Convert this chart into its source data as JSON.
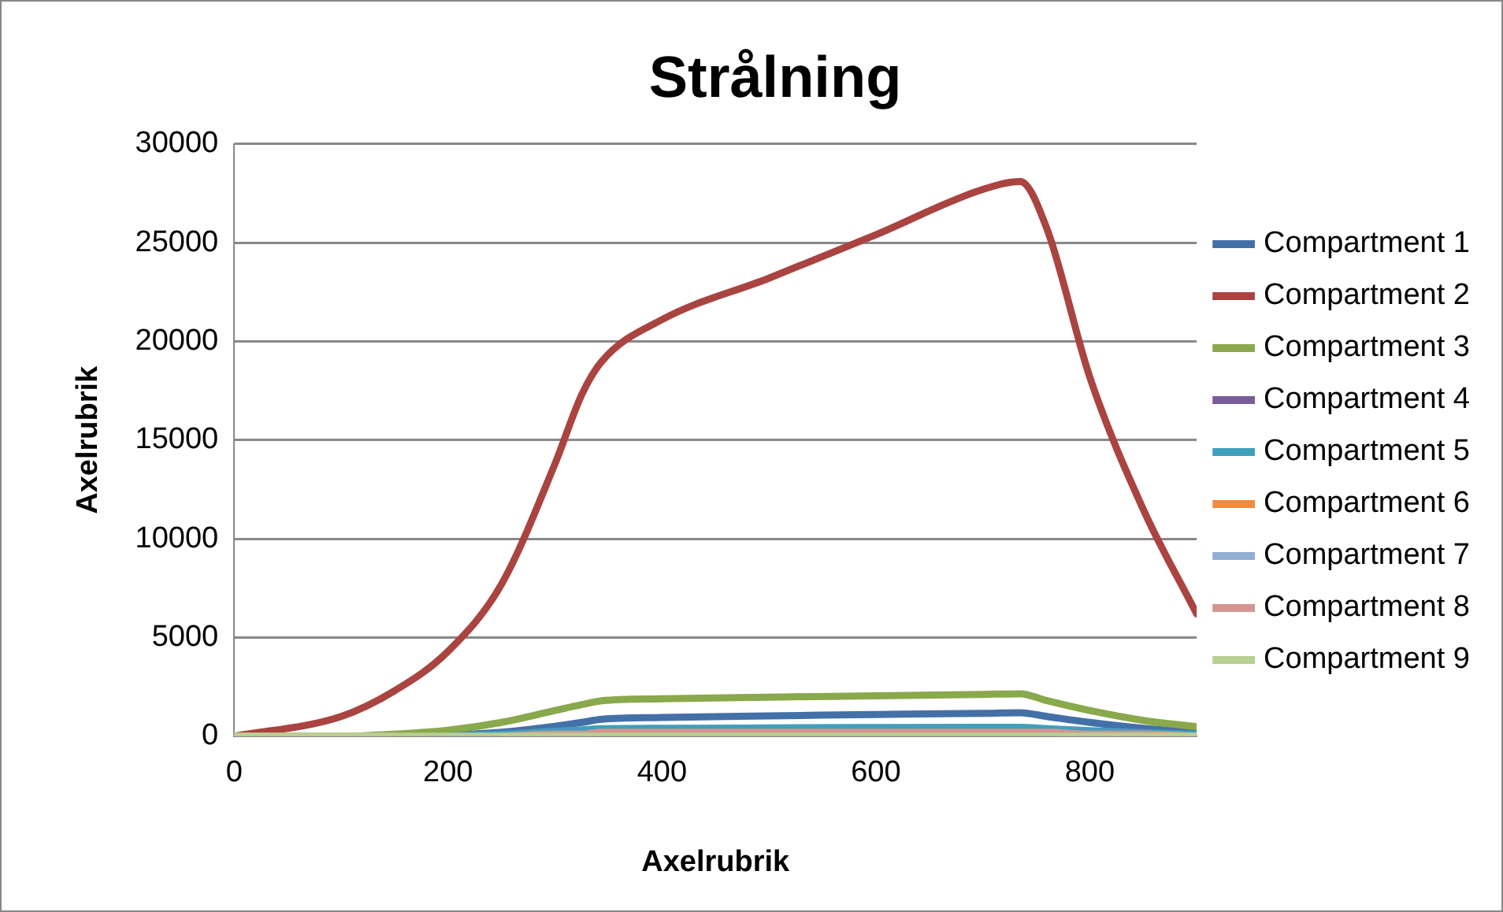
{
  "chart_data": {
    "type": "line",
    "title": "Strålning",
    "xlabel": "Axelrubrik",
    "ylabel": "Axelrubrik",
    "x": [
      0,
      100,
      150,
      200,
      250,
      300,
      325,
      344,
      400,
      500,
      600,
      700,
      735,
      760,
      800,
      850,
      900
    ],
    "xlim": [
      0,
      900
    ],
    "xticks": [
      0,
      200,
      400,
      600,
      800
    ],
    "ylim": [
      0,
      30000
    ],
    "yticks": [
      0,
      5000,
      10000,
      15000,
      20000,
      25000,
      30000
    ],
    "grid": "y",
    "legend": "right",
    "marker": "none",
    "line_style": "solid",
    "series": [
      {
        "name": "Compartment 1",
        "color": "#4470a8",
        "values": [
          null,
          null,
          0,
          50,
          200,
          500,
          700,
          860,
          950,
          1030,
          1100,
          1160,
          1190,
          1000,
          700,
          400,
          200
        ]
      },
      {
        "name": "Compartment 2",
        "color": "#aa4440",
        "values": [
          0,
          1000,
          2300,
          4300,
          7700,
          13800,
          17300,
          19000,
          21100,
          23200,
          25400,
          27700,
          28100,
          25700,
          18200,
          11500,
          6200
        ]
      },
      {
        "name": "Compartment 3",
        "color": "#8aa84c",
        "values": [
          0,
          0,
          100,
          300,
          700,
          1300,
          1600,
          1800,
          1900,
          1980,
          2050,
          2120,
          2150,
          1800,
          1300,
          800,
          480
        ]
      },
      {
        "name": "Compartment 4",
        "color": "#7a5c9c",
        "values": [
          null,
          null,
          null,
          null,
          null,
          null,
          null,
          null,
          null,
          null,
          null,
          null,
          null,
          null,
          null,
          null,
          null
        ]
      },
      {
        "name": "Compartment 5",
        "color": "#3fa0bc",
        "values": [
          null,
          null,
          null,
          20,
          100,
          250,
          320,
          380,
          400,
          420,
          440,
          450,
          450,
          380,
          280,
          180,
          100
        ]
      },
      {
        "name": "Compartment 6",
        "color": "#f08a3c",
        "values": [
          null,
          null,
          null,
          null,
          null,
          null,
          null,
          null,
          null,
          null,
          null,
          null,
          null,
          null,
          null,
          null,
          null
        ]
      },
      {
        "name": "Compartment 7",
        "color": "#92aed4",
        "values": [
          null,
          null,
          null,
          null,
          null,
          null,
          null,
          null,
          null,
          null,
          null,
          null,
          null,
          null,
          null,
          null,
          null
        ]
      },
      {
        "name": "Compartment 8",
        "color": "#d69491",
        "values": [
          0,
          0,
          0,
          null,
          0,
          100,
          100,
          200,
          200,
          200,
          200,
          200,
          200,
          200,
          100,
          100,
          0
        ]
      },
      {
        "name": "Compartment 9",
        "color": "#b8cf92",
        "values": [
          0,
          0,
          0,
          0,
          0,
          0,
          0,
          0,
          0,
          0,
          0,
          0,
          0,
          0,
          0,
          0,
          0
        ]
      }
    ]
  }
}
